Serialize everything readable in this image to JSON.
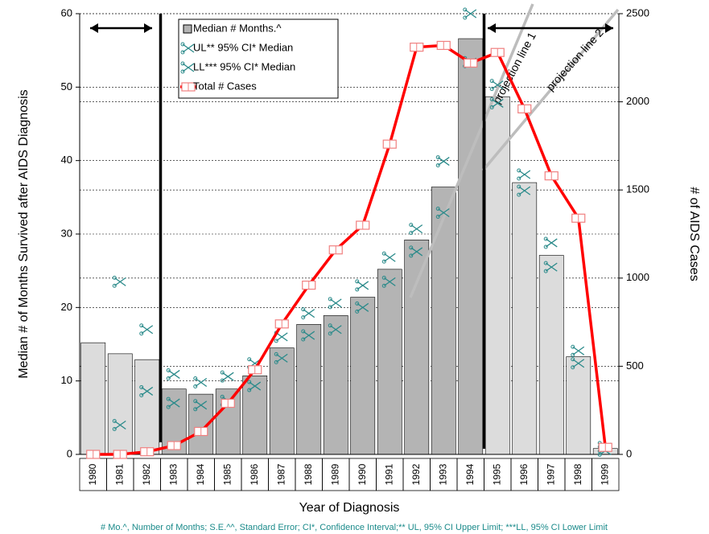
{
  "chart_data": {
    "type": "bar",
    "x_label": "Year of Diagnosis",
    "y_label": "Median # of Months Survived after AIDS Diagnosis",
    "y2_label": "# of AIDS Cases",
    "footnote": "# Mo.^, Number of Months; S.E.^^, Standard Error; CI*, Confidence Interval;** UL, 95% CI Upper Limit; ***LL,  95% CI Lower Limit",
    "annotations": [
      "projection line 1",
      "projection line 2"
    ],
    "categories": [
      "1980",
      "1981",
      "1982",
      "1983",
      "1984",
      "1985",
      "1986",
      "1987",
      "1988",
      "1989",
      "1990",
      "1991",
      "1992",
      "1993",
      "1994",
      "1995",
      "1996",
      "1997",
      "1998",
      "1999"
    ],
    "ylim": [
      0,
      60
    ],
    "yticks": [
      0,
      10,
      20,
      30,
      40,
      50,
      60
    ],
    "y2lim": [
      0,
      2500
    ],
    "y2ticks": [
      0,
      500,
      1000,
      1500,
      2000,
      2500
    ],
    "grid": true,
    "series": [
      {
        "name": "Median # Months.^",
        "type": "bar",
        "color": "#b4b4b4",
        "colors": [
          "#dcdcdc",
          "#dcdcdc",
          "#dcdcdc",
          "#b4b4b4",
          "#b4b4b4",
          "#b4b4b4",
          "#b4b4b4",
          "#b4b4b4",
          "#b4b4b4",
          "#b4b4b4",
          "#b4b4b4",
          "#b4b4b4",
          "#b4b4b4",
          "#b4b4b4",
          "#b4b4b4",
          "#dcdcdc",
          "#dcdcdc",
          "#dcdcdc",
          "#dcdcdc",
          "#dcdcdc"
        ],
        "values": [
          15.2,
          13.7,
          12.9,
          8.9,
          8.2,
          8.9,
          10.7,
          14.5,
          17.7,
          18.9,
          21.4,
          25.2,
          29.2,
          36.4,
          56.6,
          48.7,
          37.0,
          27.1,
          13.3,
          0.8
        ]
      },
      {
        "name": "UL** 95% CI* Median",
        "type": "scatter",
        "color": "#2a8a8a",
        "values": [
          null,
          23.5,
          17.0,
          10.9,
          9.8,
          10.6,
          12.4,
          16.0,
          19.2,
          20.6,
          23.0,
          26.8,
          30.7,
          39.9,
          60.0,
          50.3,
          38.1,
          28.8,
          14.1,
          1.0
        ]
      },
      {
        "name": "LL*** 95% CI* Median",
        "type": "scatter",
        "color": "#2a8a8a",
        "values": [
          null,
          4.0,
          8.6,
          7.0,
          6.7,
          7.3,
          9.3,
          13.1,
          16.2,
          17.0,
          20.0,
          23.5,
          27.6,
          32.9,
          53.4,
          47.8,
          35.9,
          25.5,
          12.4,
          0.5
        ]
      },
      {
        "name": "Total # Cases",
        "type": "line",
        "axis": "y2",
        "color": "#ff0000",
        "values": [
          0,
          0,
          15,
          50,
          130,
          290,
          480,
          740,
          960,
          1160,
          1300,
          1760,
          2310,
          2320,
          2220,
          2280,
          1960,
          1580,
          1340,
          40
        ]
      }
    ]
  }
}
